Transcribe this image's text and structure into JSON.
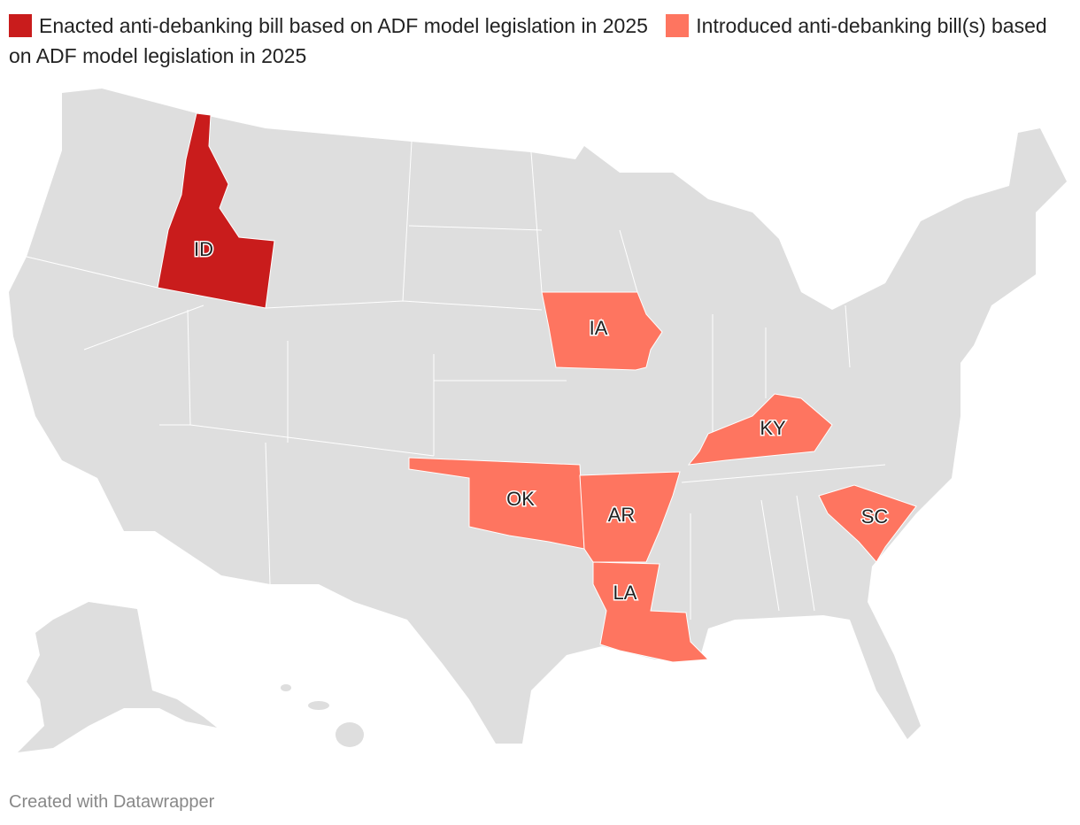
{
  "legend": [
    {
      "label": "Enacted anti-debanking bill based on ADF model legislation in 2025",
      "color": "#c91c1c",
      "states": [
        "ID"
      ]
    },
    {
      "label": "Introduced anti-debanking bill(s) based on ADF model legislation in 2025",
      "color": "#fe7560",
      "states": [
        "IA",
        "KY",
        "OK",
        "AR",
        "LA",
        "SC"
      ]
    }
  ],
  "footer": "Created with Datawrapper"
}
